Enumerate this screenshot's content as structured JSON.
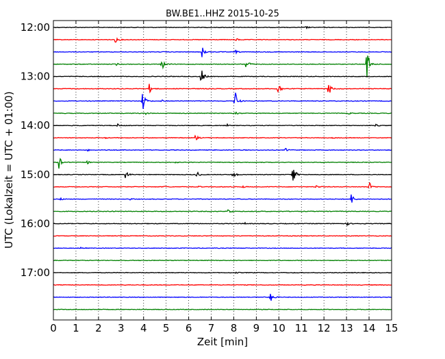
{
  "chart_data": {
    "type": "line",
    "title": "BW.BE1..HHZ 2015-10-25",
    "xlabel": "Zeit  [min]",
    "ylabel": "UTC (Lokalzeit = UTC + 01:00)",
    "xlim": [
      0,
      15
    ],
    "x_ticks": [
      "0",
      "1",
      "2",
      "3",
      "4",
      "5",
      "6",
      "7",
      "8",
      "9",
      "10",
      "11",
      "12",
      "13",
      "14",
      "15"
    ],
    "y_tick_labels": [
      "12:00",
      "13:00",
      "14:00",
      "15:00",
      "16:00",
      "17:00"
    ],
    "grid": "vertical-dotted",
    "trace_colors": [
      "#000000",
      "#ff0000",
      "#0000ff",
      "#008000"
    ],
    "trace_interval_minutes": 15,
    "first_trace_start": "12:00",
    "traces": [
      {
        "start": "12:00",
        "color": "#000000",
        "events": [
          {
            "t": 11.2,
            "amp": 0.15
          }
        ]
      },
      {
        "start": "12:15",
        "color": "#ff0000",
        "events": [
          {
            "t": 2.75,
            "amp": 0.35
          },
          {
            "t": 8.1,
            "amp": 0.15
          }
        ]
      },
      {
        "start": "12:30",
        "color": "#0000ff",
        "events": [
          {
            "t": 6.6,
            "amp": 0.8
          },
          {
            "t": 8.05,
            "amp": 0.2
          }
        ]
      },
      {
        "start": "12:45",
        "color": "#008000",
        "events": [
          {
            "t": 4.8,
            "amp": 0.7
          },
          {
            "t": 8.55,
            "amp": 0.7
          },
          {
            "t": 13.9,
            "amp": 2.0
          },
          {
            "t": 2.8,
            "amp": 0.12
          }
        ]
      },
      {
        "start": "13:00",
        "color": "#000000",
        "events": [
          {
            "t": 6.55,
            "amp": 1.0
          }
        ]
      },
      {
        "start": "13:15",
        "color": "#ff0000",
        "events": [
          {
            "t": 4.25,
            "amp": 0.5
          },
          {
            "t": 9.95,
            "amp": 0.9
          },
          {
            "t": 12.2,
            "amp": 0.8
          }
        ]
      },
      {
        "start": "13:30",
        "color": "#0000ff",
        "events": [
          {
            "t": 3.95,
            "amp": 1.2
          },
          {
            "t": 8.05,
            "amp": 1.4
          },
          {
            "t": 4.8,
            "amp": 0.12
          }
        ]
      },
      {
        "start": "13:45",
        "color": "#008000",
        "events": [
          {
            "t": 4.1,
            "amp": 0.1
          },
          {
            "t": 8.1,
            "amp": 0.15
          },
          {
            "t": 13.1,
            "amp": 0.1
          }
        ]
      },
      {
        "start": "14:00",
        "color": "#000000",
        "events": [
          {
            "t": 2.85,
            "amp": 0.15
          },
          {
            "t": 7.7,
            "amp": 0.12
          },
          {
            "t": 14.3,
            "amp": 0.12
          }
        ]
      },
      {
        "start": "14:15",
        "color": "#ff0000",
        "events": [
          {
            "t": 6.3,
            "amp": 0.3
          },
          {
            "t": 2.3,
            "amp": 0.1
          },
          {
            "t": 12.4,
            "amp": 0.1
          }
        ]
      },
      {
        "start": "14:30",
        "color": "#0000ff",
        "events": [
          {
            "t": 10.3,
            "amp": 0.2
          },
          {
            "t": 1.5,
            "amp": 0.1
          }
        ]
      },
      {
        "start": "14:45",
        "color": "#008000",
        "events": [
          {
            "t": 0.25,
            "amp": 0.8
          },
          {
            "t": 1.5,
            "amp": 0.15
          },
          {
            "t": 5.4,
            "amp": 0.1
          }
        ]
      },
      {
        "start": "15:00",
        "color": "#000000",
        "events": [
          {
            "t": 3.2,
            "amp": 0.5
          },
          {
            "t": 6.35,
            "amp": 0.4
          },
          {
            "t": 7.95,
            "amp": 0.6
          },
          {
            "t": 10.6,
            "amp": 1.3
          }
        ]
      },
      {
        "start": "15:15",
        "color": "#ff0000",
        "events": [
          {
            "t": 14.0,
            "amp": 0.55
          },
          {
            "t": 4.9,
            "amp": 0.1
          },
          {
            "t": 6.4,
            "amp": 0.12
          },
          {
            "t": 11.65,
            "amp": 0.2
          },
          {
            "t": 8.4,
            "amp": 0.1
          }
        ]
      },
      {
        "start": "15:30",
        "color": "#0000ff",
        "events": [
          {
            "t": 13.2,
            "amp": 0.7
          },
          {
            "t": 0.3,
            "amp": 0.12
          },
          {
            "t": 3.4,
            "amp": 0.08
          }
        ]
      },
      {
        "start": "15:45",
        "color": "#008000",
        "events": [
          {
            "t": 7.75,
            "amp": 0.3
          },
          {
            "t": 2.6,
            "amp": 0.08
          }
        ]
      },
      {
        "start": "16:00",
        "color": "#000000",
        "events": [
          {
            "t": 13.0,
            "amp": 0.2
          },
          {
            "t": 8.5,
            "amp": 0.08
          }
        ]
      },
      {
        "start": "16:15",
        "color": "#ff0000",
        "events": []
      },
      {
        "start": "16:30",
        "color": "#0000ff",
        "events": [
          {
            "t": 1.2,
            "amp": 0.08
          }
        ]
      },
      {
        "start": "16:45",
        "color": "#008000",
        "events": []
      },
      {
        "start": "17:00",
        "color": "#000000",
        "events": [
          {
            "t": 8.1,
            "amp": 0.08
          }
        ]
      },
      {
        "start": "17:15",
        "color": "#ff0000",
        "events": []
      },
      {
        "start": "17:30",
        "color": "#0000ff",
        "events": [
          {
            "t": 9.6,
            "amp": 0.7
          }
        ]
      },
      {
        "start": "17:45",
        "color": "#008000",
        "events": []
      }
    ]
  }
}
